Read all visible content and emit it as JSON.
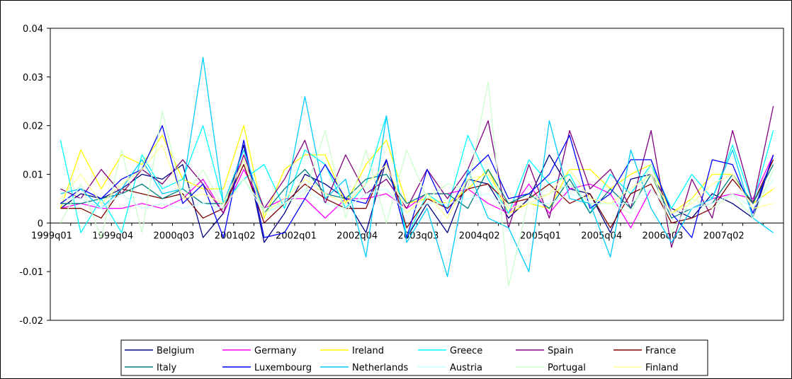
{
  "chart_data": {
    "type": "line",
    "title": "",
    "xlabel": "",
    "ylabel": "",
    "ylim": [
      -0.02,
      0.04
    ],
    "yticks": [
      "0.04",
      "0.03",
      "0.02",
      "0.01",
      "0",
      "-0.01",
      "-0.02"
    ],
    "x_tick_labels": [
      "1999q01",
      "1999q04",
      "2000q03",
      "2001q02",
      "2002q01",
      "2002q04",
      "2003q03",
      "2004q02",
      "2005q01",
      "2005q04",
      "2006q03",
      "2007q02"
    ],
    "x": [
      "1999q01",
      "1999q02",
      "1999q03",
      "1999q04",
      "2000q01",
      "2000q02",
      "2000q03",
      "2000q04",
      "2001q01",
      "2001q02",
      "2001q03",
      "2001q04",
      "2002q01",
      "2002q02",
      "2002q03",
      "2002q04",
      "2003q01",
      "2003q02",
      "2003q03",
      "2003q04",
      "2004q01",
      "2004q02",
      "2004q03",
      "2004q04",
      "2005q01",
      "2005q02",
      "2005q03",
      "2005q04",
      "2006q01",
      "2006q02",
      "2006q03",
      "2006q04",
      "2007q01",
      "2007q02",
      "2007q03",
      "2007q04"
    ],
    "grid": false,
    "legend_position": "bottom",
    "series": [
      {
        "name": "Belgium",
        "color": "#000080",
        "values": [
          0.003,
          0.006,
          0.005,
          0.007,
          0.01,
          0.009,
          0.012,
          -0.003,
          0.002,
          0.016,
          -0.004,
          0.002,
          0.01,
          0.008,
          0.005,
          -0.002,
          0.013,
          -0.003,
          0.004,
          -0.002,
          0.009,
          0.008,
          0.001,
          0.005,
          0.014,
          0.007,
          0.006,
          -0.002,
          0.009,
          0.01,
          0.003,
          0.001,
          0.006,
          0.004,
          0.001,
          0.014
        ]
      },
      {
        "name": "Germany",
        "color": "#FF00FF",
        "values": [
          0.003,
          0.004,
          0.003,
          0.003,
          0.004,
          0.003,
          0.005,
          0.009,
          0.002,
          0.011,
          0.003,
          0.005,
          0.005,
          0.001,
          0.005,
          0.005,
          0.006,
          0.003,
          0.006,
          0.006,
          0.007,
          0.004,
          0.002,
          0.008,
          0.002,
          0.007,
          0.008,
          0.006,
          -0.001,
          0.007,
          0.002,
          0.003,
          0.005,
          0.006,
          0.005,
          0.014
        ]
      },
      {
        "name": "Ireland",
        "color": "#FFFF00",
        "values": [
          0.003,
          0.015,
          0.007,
          0.014,
          0.012,
          0.018,
          0.009,
          0.007,
          0.007,
          0.02,
          0.001,
          0.011,
          0.014,
          0.014,
          0.004,
          0.012,
          0.017,
          0.004,
          0.005,
          0.004,
          0.007,
          0.011,
          0.002,
          0.004,
          0.003,
          0.011,
          0.011,
          0.007,
          0.01,
          0.012,
          0.002,
          0.005,
          0.01,
          0.01,
          0.004,
          0.007
        ]
      },
      {
        "name": "Greece",
        "color": "#00FFFF",
        "values": [
          0.017,
          -0.002,
          0.005,
          -0.002,
          0.014,
          0.007,
          0.009,
          0.02,
          0.004,
          0.009,
          0.012,
          0.003,
          0.015,
          0.012,
          0.003,
          0.008,
          0.022,
          -0.003,
          0.006,
          0.003,
          0.018,
          0.009,
          0.002,
          0.013,
          0.008,
          0.01,
          0.002,
          0.01,
          0.006,
          0.012,
          0.003,
          0.01,
          0.005,
          0.016,
          0.004,
          0.019
        ]
      },
      {
        "name": "Spain",
        "color": "#800080",
        "values": [
          0.007,
          0.005,
          0.011,
          0.006,
          0.011,
          0.008,
          0.013,
          0.008,
          0.002,
          0.014,
          0.003,
          0.009,
          0.017,
          0.004,
          0.014,
          0.006,
          0.009,
          0.003,
          0.011,
          0.005,
          0.011,
          0.021,
          -0.001,
          0.012,
          0.001,
          0.019,
          0.007,
          0.011,
          0.003,
          0.019,
          -0.005,
          0.009,
          0.001,
          0.019,
          0.004,
          0.024
        ]
      },
      {
        "name": "France",
        "color": "#800000",
        "values": [
          0.003,
          0.003,
          0.001,
          0.007,
          0.006,
          0.005,
          0.006,
          0.001,
          0.003,
          0.012,
          0.0,
          0.004,
          0.008,
          0.005,
          0.003,
          0.003,
          0.013,
          -0.001,
          0.005,
          0.003,
          0.007,
          0.008,
          0.004,
          0.005,
          0.008,
          0.004,
          0.006,
          -0.001,
          0.006,
          0.008,
          0.0,
          0.001,
          0.003,
          0.009,
          0.004,
          0.013
        ]
      },
      {
        "name": "Italy",
        "color": "#008080",
        "values": [
          0.004,
          0.004,
          0.005,
          0.006,
          0.008,
          0.005,
          0.007,
          0.004,
          0.004,
          0.013,
          0.002,
          0.007,
          0.011,
          0.006,
          0.005,
          0.009,
          0.01,
          0.004,
          0.006,
          0.006,
          0.003,
          0.011,
          0.004,
          0.006,
          0.003,
          0.009,
          0.002,
          0.007,
          0.003,
          0.01,
          0.001,
          0.003,
          0.004,
          0.01,
          0.004,
          0.012
        ]
      },
      {
        "name": "Luxembourg",
        "color": "#0000FF",
        "values": [
          0.004,
          0.007,
          0.005,
          0.009,
          0.011,
          0.02,
          0.004,
          0.008,
          -0.003,
          0.017,
          -0.003,
          -0.002,
          0.005,
          0.012,
          0.005,
          0.004,
          0.013,
          -0.003,
          0.011,
          0.002,
          0.01,
          0.014,
          0.005,
          0.006,
          0.01,
          0.018,
          0.003,
          0.006,
          0.013,
          0.013,
          0.002,
          -0.003,
          0.013,
          0.012,
          0.002,
          0.014
        ]
      },
      {
        "name": "Netherlands",
        "color": "#00CCFF",
        "values": [
          0.006,
          0.007,
          0.003,
          0.007,
          0.013,
          0.006,
          0.007,
          0.034,
          0.004,
          0.015,
          0.002,
          0.004,
          0.026,
          0.005,
          0.009,
          -0.007,
          0.022,
          -0.004,
          0.003,
          -0.011,
          0.011,
          0.001,
          -0.001,
          -0.01,
          0.021,
          0.005,
          0.004,
          -0.007,
          0.015,
          0.003,
          -0.004,
          0.003,
          0.005,
          0.015,
          0.001,
          -0.002
        ]
      },
      {
        "name": "Austria",
        "color": "#CCFFFF",
        "values": [
          0.005,
          0.005,
          0.003,
          0.006,
          0.003,
          0.004,
          0.003,
          0.004,
          0.003,
          0.009,
          0.002,
          0.004,
          0.007,
          0.004,
          0.003,
          0.006,
          0.007,
          0.002,
          0.004,
          0.004,
          0.005,
          0.006,
          0.003,
          0.004,
          0.004,
          0.006,
          0.005,
          0.004,
          0.004,
          0.007,
          0.002,
          0.003,
          0.004,
          0.006,
          0.003,
          0.009
        ]
      },
      {
        "name": "Portugal",
        "color": "#CCFFCC",
        "values": [
          0.0,
          0.008,
          -0.003,
          0.015,
          -0.002,
          0.023,
          0.005,
          0.011,
          0.003,
          0.009,
          0.003,
          0.004,
          0.006,
          0.019,
          0.001,
          0.015,
          0.0,
          0.015,
          0.005,
          0.008,
          0.007,
          0.029,
          -0.013,
          0.005,
          0.006,
          0.008,
          0.004,
          0.004,
          0.002,
          0.012,
          -0.002,
          0.005,
          0.003,
          0.006,
          0.001,
          0.011
        ]
      },
      {
        "name": "Finland",
        "color": "#FFFF99",
        "values": [
          0.005,
          0.01,
          0.004,
          0.008,
          0.011,
          0.016,
          0.005,
          0.006,
          0.004,
          0.013,
          0.002,
          0.005,
          0.009,
          0.006,
          0.004,
          0.008,
          0.012,
          0.002,
          0.006,
          0.001,
          0.009,
          0.01,
          0.003,
          0.004,
          0.006,
          0.011,
          0.005,
          0.004,
          0.007,
          0.01,
          0.002,
          0.004,
          0.008,
          0.01,
          0.003,
          0.004
        ]
      }
    ]
  }
}
